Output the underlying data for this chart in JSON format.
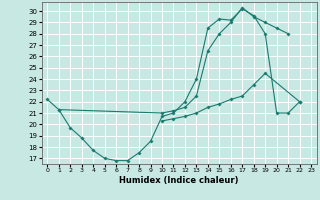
{
  "xlabel": "Humidex (Indice chaleur)",
  "bg_color": "#c8e8e4",
  "grid_color": "#ffffff",
  "line_color": "#1a7a6e",
  "xlim": [
    -0.5,
    23.5
  ],
  "ylim": [
    16.5,
    30.8
  ],
  "xticks": [
    0,
    1,
    2,
    3,
    4,
    5,
    6,
    7,
    8,
    9,
    10,
    11,
    12,
    13,
    14,
    15,
    16,
    17,
    18,
    19,
    20,
    21,
    22,
    23
  ],
  "yticks": [
    17,
    18,
    19,
    20,
    21,
    22,
    23,
    24,
    25,
    26,
    27,
    28,
    29,
    30
  ],
  "line1_x": [
    0,
    1,
    2,
    3,
    4,
    5,
    6,
    7,
    8,
    9,
    10,
    11,
    12,
    13,
    14,
    15,
    16,
    17,
    18,
    19,
    20,
    21,
    22
  ],
  "line1_y": [
    22.2,
    21.3,
    19.7,
    18.8,
    17.7,
    17.0,
    16.8,
    16.8,
    17.5,
    18.5,
    20.7,
    21.0,
    22.0,
    24.0,
    28.5,
    29.3,
    29.2,
    30.2,
    29.6,
    28.0,
    21.0,
    21.0,
    22.0
  ],
  "line2_x": [
    1,
    10,
    11,
    12,
    13,
    14,
    15,
    16,
    17,
    18,
    19,
    20,
    21
  ],
  "line2_y": [
    21.3,
    21.0,
    21.2,
    21.5,
    22.5,
    26.5,
    28.0,
    29.0,
    30.3,
    29.5,
    29.0,
    28.5,
    28.0
  ],
  "line3_x": [
    10,
    11,
    12,
    13,
    14,
    15,
    16,
    17,
    18,
    19,
    22
  ],
  "line3_y": [
    20.3,
    20.5,
    20.7,
    21.0,
    21.5,
    21.8,
    22.2,
    22.5,
    23.5,
    24.5,
    22.0
  ]
}
